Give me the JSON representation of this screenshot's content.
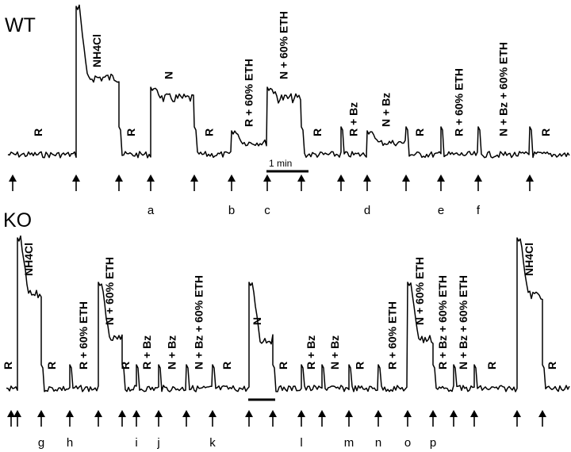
{
  "panels": [
    {
      "id": "WT",
      "label": "WT",
      "segments": [
        {
          "label": "R",
          "level": "low"
        },
        {
          "label": "NH4Cl",
          "level": "high"
        },
        {
          "label": "R",
          "level": "low"
        },
        {
          "label": "N",
          "level": "mid"
        },
        {
          "label": "R",
          "level": "low"
        },
        {
          "label": "R + 60% ETH",
          "level": "low-mid"
        },
        {
          "label": "N + 60% ETH",
          "level": "mid"
        },
        {
          "label": "R",
          "level": "low"
        },
        {
          "label": "R + Bz",
          "level": "low"
        },
        {
          "label": "N + Bz",
          "level": "low-mid"
        },
        {
          "label": "R",
          "level": "low"
        },
        {
          "label": "R + 60% ETH",
          "level": "low"
        },
        {
          "label": "N + Bz + 60% ETH",
          "level": "low"
        },
        {
          "label": "R",
          "level": "low"
        }
      ],
      "arrow_letters": [
        "",
        "",
        "",
        "a",
        "",
        "b",
        "c",
        "",
        "",
        "d",
        "",
        "e",
        "f",
        ""
      ],
      "scale_bar": {
        "label": "1 min"
      }
    },
    {
      "id": "KO",
      "label": "KO",
      "segments": [
        {
          "label": "R",
          "level": "low"
        },
        {
          "label": "NH4Cl",
          "level": "high"
        },
        {
          "label": "R",
          "level": "low"
        },
        {
          "label": "R + 60% ETH",
          "level": "low"
        },
        {
          "label": "N + 60% ETH",
          "level": "mid"
        },
        {
          "label": "R",
          "level": "low"
        },
        {
          "label": "R + Bz",
          "level": "low"
        },
        {
          "label": "N + Bz",
          "level": "low"
        },
        {
          "label": "N + Bz + 60% ETH",
          "level": "low"
        },
        {
          "label": "R",
          "level": "low"
        },
        {
          "label": "N",
          "level": "mid"
        },
        {
          "label": "R",
          "level": "low"
        },
        {
          "label": "R + Bz",
          "level": "low"
        },
        {
          "label": "N + Bz",
          "level": "low"
        },
        {
          "label": "R",
          "level": "low"
        },
        {
          "label": "R + 60% ETH",
          "level": "low"
        },
        {
          "label": "N + 60% ETH",
          "level": "mid"
        },
        {
          "label": "R + Bz + 60% ETH",
          "level": "low"
        },
        {
          "label": "N + Bz + 60% ETH",
          "level": "low"
        },
        {
          "label": "R",
          "level": "low"
        },
        {
          "label": "NH4Cl",
          "level": "high"
        },
        {
          "label": "R",
          "level": "low"
        }
      ],
      "arrow_letters": [
        "",
        "",
        "g",
        "h",
        "",
        "",
        "i",
        "j",
        "",
        "k",
        "",
        "",
        "l",
        "",
        "m",
        "n",
        "o",
        "p",
        "",
        "",
        "",
        ""
      ],
      "scale_bar": {
        "label": ""
      }
    }
  ]
}
